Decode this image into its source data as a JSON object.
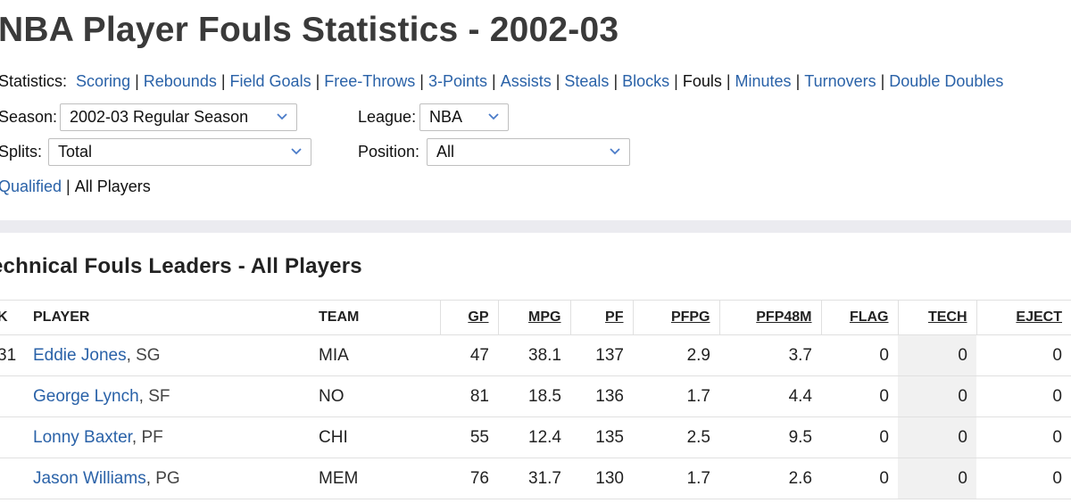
{
  "page": {
    "title": "NBA Player Fouls Statistics - 2002-03"
  },
  "stats_nav": {
    "label": "Statistics:",
    "items": [
      {
        "label": "Scoring",
        "active": false
      },
      {
        "label": "Rebounds",
        "active": false
      },
      {
        "label": "Field Goals",
        "active": false
      },
      {
        "label": "Free-Throws",
        "active": false
      },
      {
        "label": "3-Points",
        "active": false
      },
      {
        "label": "Assists",
        "active": false
      },
      {
        "label": "Steals",
        "active": false
      },
      {
        "label": "Blocks",
        "active": false
      },
      {
        "label": "Fouls",
        "active": true
      },
      {
        "label": "Minutes",
        "active": false
      },
      {
        "label": "Turnovers",
        "active": false
      },
      {
        "label": "Double Doubles",
        "active": false
      }
    ]
  },
  "filters": {
    "season_label": "Season:",
    "season_value": "2002-03 Regular Season",
    "league_label": "League:",
    "league_value": "NBA",
    "splits_label": "Splits:",
    "splits_value": "Total",
    "position_label": "Position:",
    "position_value": "All"
  },
  "qualification": {
    "qualified_label": "Qualified",
    "all_label": "All Players"
  },
  "section": {
    "title": "echnical Fouls Leaders - All Players"
  },
  "table": {
    "headers": {
      "rank": "K",
      "player": "PLAYER",
      "team": "TEAM",
      "gp": "GP",
      "mpg": "MPG",
      "pf": "PF",
      "pfpg": "PFPG",
      "pfp48m": "PFP48M",
      "flag": "FLAG",
      "tech": "TECH",
      "eject": "EJECT"
    },
    "rows": [
      {
        "rank": "31",
        "name": "Eddie Jones",
        "pos": ", SG",
        "team": "MIA",
        "gp": "47",
        "mpg": "38.1",
        "pf": "137",
        "pfpg": "2.9",
        "pfp48m": "3.7",
        "flag": "0",
        "tech": "0",
        "eject": "0"
      },
      {
        "rank": "",
        "name": "George Lynch",
        "pos": ", SF",
        "team": "NO",
        "gp": "81",
        "mpg": "18.5",
        "pf": "136",
        "pfpg": "1.7",
        "pfp48m": "4.4",
        "flag": "0",
        "tech": "0",
        "eject": "0"
      },
      {
        "rank": "",
        "name": "Lonny Baxter",
        "pos": ", PF",
        "team": "CHI",
        "gp": "55",
        "mpg": "12.4",
        "pf": "135",
        "pfpg": "2.5",
        "pfp48m": "9.5",
        "flag": "0",
        "tech": "0",
        "eject": "0"
      },
      {
        "rank": "",
        "name": "Jason Williams",
        "pos": ", PG",
        "team": "MEM",
        "gp": "76",
        "mpg": "31.7",
        "pf": "130",
        "pfpg": "1.7",
        "pfp48m": "2.6",
        "flag": "0",
        "tech": "0",
        "eject": "0"
      }
    ]
  },
  "icons": {
    "select_caret": "chevron-down-icon",
    "caret_color": "#4a7bc8"
  },
  "colors": {
    "link": "#2a62a8",
    "band": "#ebebf0",
    "title": "#3a3a3a"
  }
}
